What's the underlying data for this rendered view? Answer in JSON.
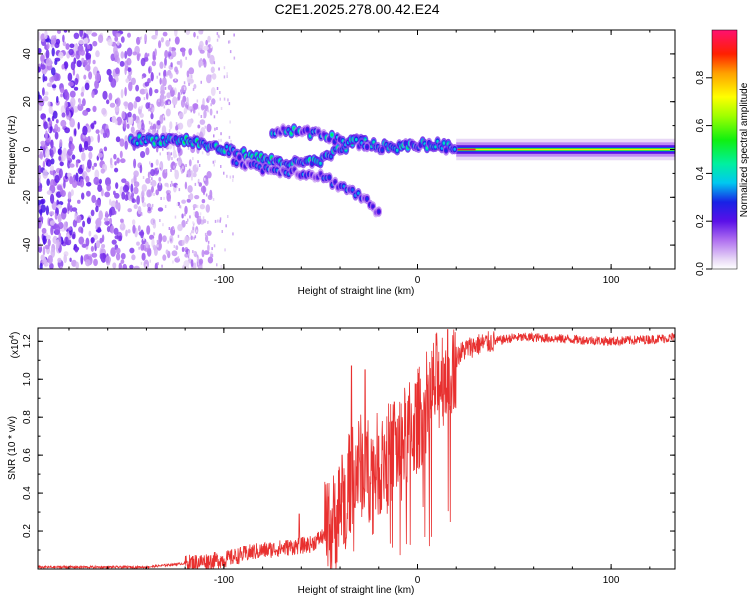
{
  "title": "C2E1.2025.278.00.42.E24",
  "colors": {
    "axis": "#000000",
    "snr_line": "#e8302f",
    "background": "#ffffff"
  },
  "chart_data": [
    {
      "type": "heatmap",
      "title": "C2E1.2025.278.00.42.E24",
      "xlabel": "Height of straight line (km)",
      "ylabel": "Frequency (Hz)",
      "xlim": [
        -196,
        133
      ],
      "ylim": [
        -50,
        50
      ],
      "xticks": [
        -100,
        0,
        100
      ],
      "xtick_labels": [
        "-100",
        "0",
        "100"
      ],
      "yticks": [
        -40,
        -20,
        0,
        20,
        40
      ],
      "ytick_labels": [
        "-40",
        "-20",
        "0",
        "20",
        "40"
      ],
      "colorbar": {
        "label": "Normalized spectral amplitude",
        "range": [
          0,
          1
        ],
        "ticks": [
          0,
          0.2,
          0.4,
          0.6,
          0.8
        ],
        "tick_labels": [
          "0.0",
          "0.2",
          "0.4",
          "0.6",
          "0.8"
        ]
      },
      "features": [
        {
          "name": "main-carrier",
          "x_start": -148,
          "x_end": 133,
          "freq_path": [
            [
              -148,
              4
            ],
            [
              -120,
              4
            ],
            [
              -100,
              0
            ],
            [
              -80,
              -4
            ],
            [
              -65,
              -6
            ],
            [
              -50,
              -5
            ],
            [
              -40,
              0
            ],
            [
              -30,
              4
            ],
            [
              -20,
              1
            ],
            [
              -10,
              1
            ],
            [
              0,
              2
            ],
            [
              10,
              2
            ],
            [
              20,
              0
            ],
            [
              133,
              0
            ]
          ],
          "amplitude": [
            0.35,
            1.0
          ]
        },
        {
          "name": "upper-branch",
          "freq_path": [
            [
              -75,
              8
            ],
            [
              -60,
              8
            ],
            [
              -45,
              5
            ],
            [
              -35,
              3
            ],
            [
              -25,
              2
            ]
          ],
          "amplitude": 0.35
        },
        {
          "name": "lower-branch",
          "freq_path": [
            [
              -95,
              -4
            ],
            [
              -80,
              -8
            ],
            [
              -65,
              -9
            ],
            [
              -50,
              -11
            ],
            [
              -40,
              -15
            ],
            [
              -28,
              -20
            ],
            [
              -20,
              -27
            ]
          ],
          "amplitude": 0.25
        },
        {
          "name": "noise-region",
          "x_start": -196,
          "x_end": -105,
          "freq_range": [
            -50,
            50
          ],
          "amplitude": [
            0.05,
            0.2
          ]
        }
      ]
    },
    {
      "type": "line",
      "xlabel": "Height of straight line (km)",
      "ylabel": "SNR (10 * v/v)",
      "y_scale_label": "(x10",
      "y_scale_exp": "4",
      "y_scale_close": ")",
      "xlim": [
        -196,
        133
      ],
      "ylim": [
        0,
        1.27
      ],
      "xticks": [
        -100,
        0,
        100
      ],
      "xtick_labels": [
        "-100",
        "0",
        "100"
      ],
      "yticks": [
        0.2,
        0.4,
        0.6,
        0.8,
        1.0,
        1.2
      ],
      "ytick_labels": [
        "0.2",
        "0.4",
        "0.6",
        "0.8",
        "1.0",
        "1.2"
      ],
      "series": [
        {
          "name": "SNR",
          "envelope": [
            [
              -196,
              0.01
            ],
            [
              -140,
              0.01
            ],
            [
              -120,
              0.03
            ],
            [
              -100,
              0.05
            ],
            [
              -85,
              0.09
            ],
            [
              -70,
              0.11
            ],
            [
              -55,
              0.13
            ],
            [
              -45,
              0.2
            ],
            [
              -40,
              0.32
            ],
            [
              -35,
              0.45
            ],
            [
              -30,
              0.55
            ],
            [
              -25,
              0.52
            ],
            [
              -20,
              0.55
            ],
            [
              -15,
              0.6
            ],
            [
              -10,
              0.64
            ],
            [
              -5,
              0.71
            ],
            [
              0,
              0.78
            ],
            [
              5,
              0.88
            ],
            [
              10,
              0.98
            ],
            [
              15,
              1.05
            ],
            [
              20,
              1.12
            ],
            [
              25,
              1.16
            ],
            [
              30,
              1.18
            ],
            [
              40,
              1.2
            ],
            [
              50,
              1.22
            ],
            [
              60,
              1.22
            ],
            [
              80,
              1.21
            ],
            [
              100,
              1.2
            ],
            [
              120,
              1.21
            ],
            [
              133,
              1.22
            ]
          ],
          "spikes": [
            [
              -34,
              1.07
            ],
            [
              -27,
              1.05
            ],
            [
              -12,
              0.88
            ],
            [
              5,
              0.97
            ],
            [
              14,
              1.08
            ],
            [
              -61,
              0.29
            ],
            [
              -46,
              0.38
            ],
            [
              -39,
              0.6
            ],
            [
              -20,
              0.7
            ]
          ]
        }
      ]
    }
  ]
}
